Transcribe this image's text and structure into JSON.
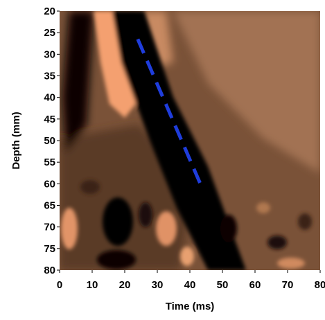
{
  "chart_data": {
    "type": "line",
    "xlabel": "Time (ms)",
    "ylabel": "Depth (mm)",
    "xlim": [
      0,
      80
    ],
    "xticks": [
      0,
      10,
      20,
      30,
      40,
      50,
      60,
      70,
      80
    ],
    "ylim": [
      20,
      80
    ],
    "yticks": [
      20,
      25,
      30,
      35,
      40,
      45,
      50,
      55,
      60,
      65,
      70,
      75,
      80
    ],
    "y_inverted": true,
    "series": [
      {
        "color": "#1f3ddc",
        "dashed": true,
        "x": [
          24,
          43.5
        ],
        "y": [
          26.5,
          60.5
        ]
      }
    ]
  }
}
